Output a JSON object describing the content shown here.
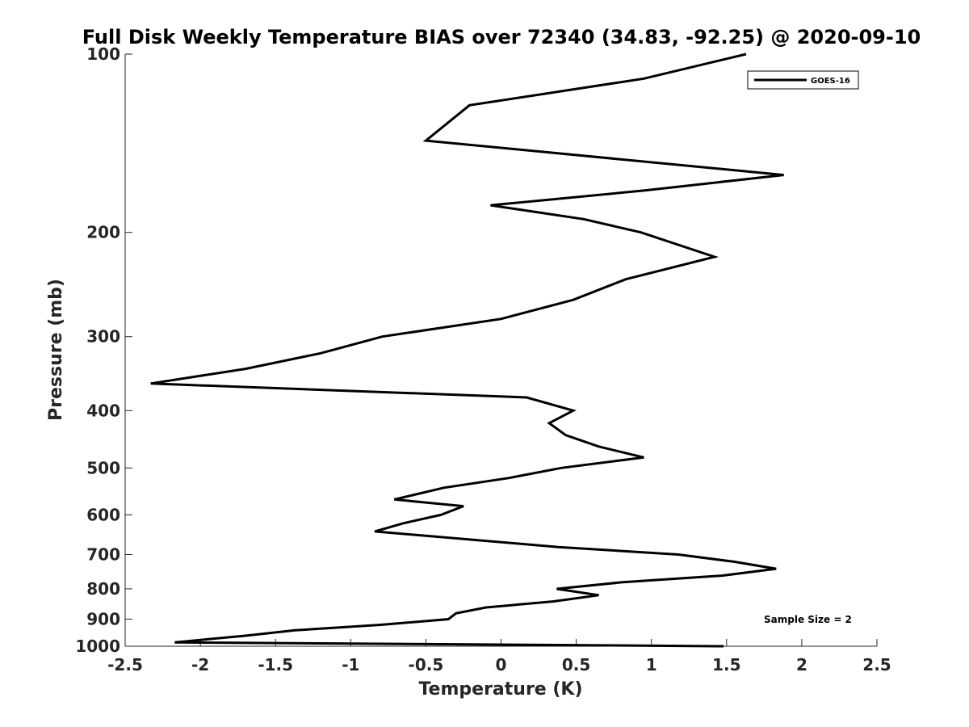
{
  "chart_data": {
    "type": "line",
    "title": "Full Disk Weekly Temperature BIAS over 72340 (34.83, -92.25) @ 2020-09-10",
    "xlabel": "Temperature (K)",
    "ylabel": "Pressure (mb)",
    "xlim": [
      -2.5,
      2.5
    ],
    "ylim": [
      1000,
      100
    ],
    "y_scale": "log",
    "y_reversed": true,
    "x_ticks": [
      "-2.5",
      "-2",
      "-1.5",
      "-1",
      "-0.5",
      "0",
      "0.5",
      "1",
      "1.5",
      "2",
      "2.5"
    ],
    "y_ticks": [
      "100",
      "200",
      "300",
      "400",
      "500",
      "600",
      "700",
      "800",
      "900",
      "1000"
    ],
    "grid": false,
    "legend": {
      "position": "top-right",
      "entries": [
        "GOES-16"
      ]
    },
    "annotation": "Sample Size = 2",
    "line_color": "#000000",
    "series": [
      {
        "name": "GOES-16",
        "points": [
          [
            1.63,
            100
          ],
          [
            0.95,
            110
          ],
          [
            -0.21,
            122
          ],
          [
            -0.5,
            140
          ],
          [
            1.88,
            160
          ],
          [
            0.95,
            170
          ],
          [
            -0.07,
            180
          ],
          [
            0.55,
            190
          ],
          [
            0.93,
            200
          ],
          [
            1.42,
            220
          ],
          [
            0.83,
            240
          ],
          [
            0.48,
            260
          ],
          [
            0.0,
            280
          ],
          [
            -0.79,
            300
          ],
          [
            -1.2,
            320
          ],
          [
            -1.7,
            340
          ],
          [
            -2.33,
            360
          ],
          [
            0.17,
            380
          ],
          [
            0.48,
            400
          ],
          [
            0.32,
            420
          ],
          [
            0.43,
            440
          ],
          [
            0.65,
            460
          ],
          [
            0.95,
            480
          ],
          [
            0.4,
            500
          ],
          [
            0.05,
            520
          ],
          [
            -0.38,
            540
          ],
          [
            -0.71,
            565
          ],
          [
            -0.25,
            580
          ],
          [
            -0.4,
            600
          ],
          [
            -0.65,
            620
          ],
          [
            -0.84,
            640
          ],
          [
            0.38,
            680
          ],
          [
            1.18,
            700
          ],
          [
            1.55,
            720
          ],
          [
            1.83,
            740
          ],
          [
            1.47,
            760
          ],
          [
            0.8,
            780
          ],
          [
            0.37,
            800
          ],
          [
            0.65,
            820
          ],
          [
            0.35,
            840
          ],
          [
            -0.1,
            860
          ],
          [
            -0.3,
            880
          ],
          [
            -0.35,
            900
          ],
          [
            -0.8,
            920
          ],
          [
            -1.37,
            940
          ],
          [
            -1.7,
            960
          ],
          [
            -2.17,
            985
          ],
          [
            1.48,
            1000
          ]
        ]
      }
    ]
  }
}
